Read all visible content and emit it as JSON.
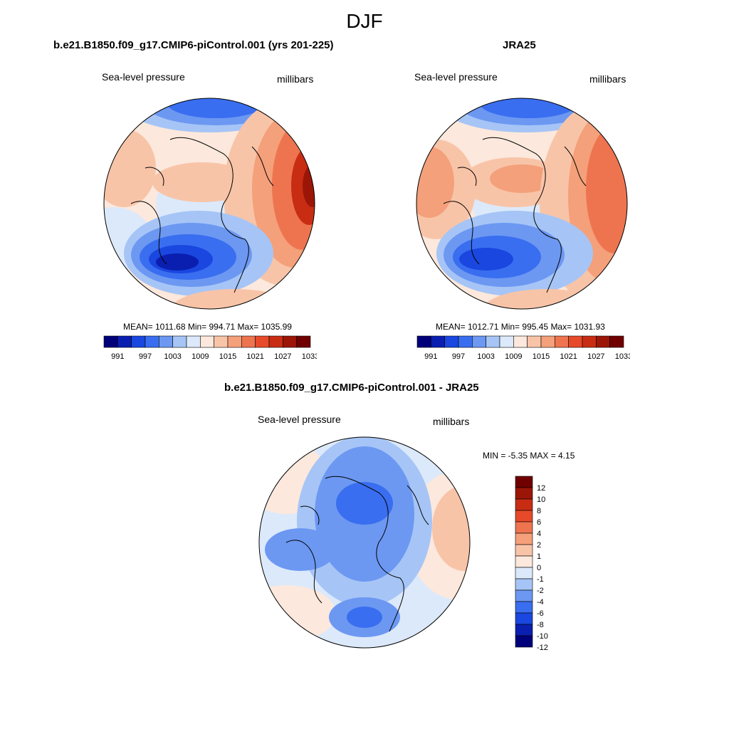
{
  "title": "DJF",
  "panels": {
    "model": {
      "title": "b.e21.B1850.f09_g17.CMIP6-piControl.001 (yrs 201-225)",
      "left_label": "Sea-level pressure",
      "right_label": "millibars",
      "stats": "MEAN= 1011.68  Min= 994.71  Max= 1035.99"
    },
    "obs": {
      "title": "JRA25",
      "left_label": "Sea-level pressure",
      "right_label": "millibars",
      "stats": "MEAN= 1012.71  Min= 995.45  Max= 1031.93"
    },
    "diff": {
      "title": "b.e21.B1850.f09_g17.CMIP6-piControl.001 - JRA25",
      "left_label": "Sea-level pressure",
      "right_label": "millibars",
      "stats": "MIN =  -5.35 MAX =   4.15"
    }
  },
  "abs_colorbar": {
    "colors": [
      "#00007a",
      "#0a1fb0",
      "#1a47e0",
      "#3a6ef0",
      "#6c98f2",
      "#a6c5f6",
      "#dce9fb",
      "#fce8dc",
      "#f8c4a8",
      "#f4a07a",
      "#ee7450",
      "#e64a2a",
      "#c82d14",
      "#9c1608",
      "#700000"
    ],
    "labels": [
      "991",
      "997",
      "1003",
      "1009",
      "1015",
      "1021",
      "1027",
      "1033"
    ]
  },
  "diff_colorbar": {
    "colors": [
      "#00007a",
      "#0a1fb0",
      "#1a47e0",
      "#3a6ef0",
      "#6c98f2",
      "#a6c5f6",
      "#dce9fb",
      "#fce8dc",
      "#f8c4a8",
      "#f4a07a",
      "#ee7450",
      "#e64a2a",
      "#c82d14",
      "#9c1608",
      "#700000"
    ],
    "labels": [
      "12",
      "10",
      "8",
      "6",
      "4",
      "2",
      "1",
      "0",
      "-1",
      "-2",
      "-4",
      "-6",
      "-8",
      "-10",
      "-12"
    ]
  }
}
